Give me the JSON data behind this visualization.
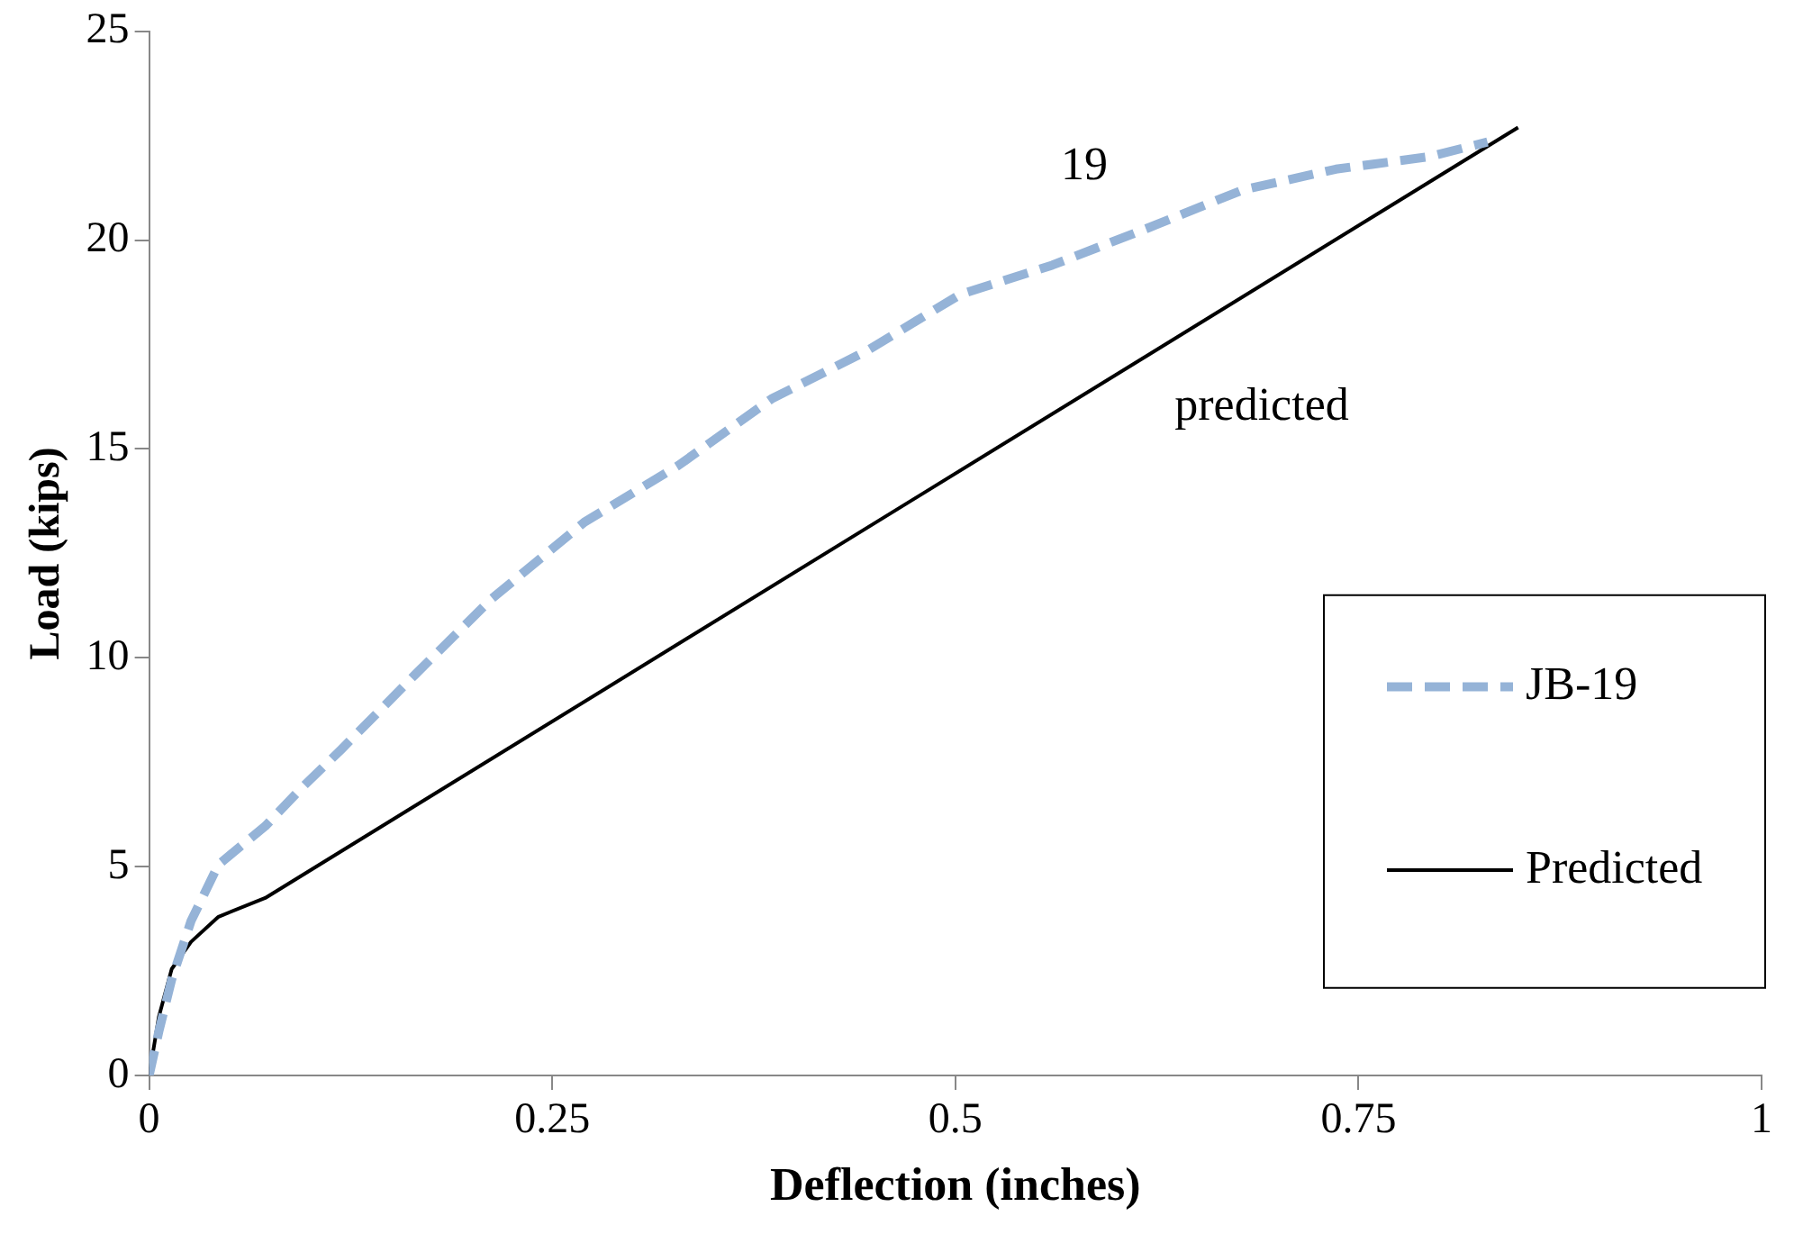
{
  "chart_data": {
    "type": "line",
    "xlabel": "Deflection (inches)",
    "ylabel": "Load (kips)",
    "xlim": [
      0,
      1
    ],
    "xticks": [
      0,
      0.25,
      0.5,
      0.75,
      1
    ],
    "ylim": [
      0,
      25
    ],
    "yticks": [
      0,
      5,
      10,
      15,
      20,
      25
    ],
    "grid": false,
    "legend": "right",
    "marker": "none",
    "series": [
      {
        "name": "JB-19",
        "color": "#95b3d7",
        "line_style": "dashed",
        "x": [
          0,
          0.006,
          0.014,
          0.026,
          0.043,
          0.072,
          0.095,
          0.119,
          0.165,
          0.212,
          0.27,
          0.328,
          0.386,
          0.445,
          0.503,
          0.56,
          0.62,
          0.678,
          0.736,
          0.794,
          0.83
        ],
        "values": [
          0,
          1.05,
          2.3,
          3.7,
          5.05,
          5.97,
          6.9,
          7.8,
          9.6,
          11.4,
          13.25,
          14.6,
          16.2,
          17.35,
          18.7,
          19.4,
          20.3,
          21.2,
          21.7,
          22.0,
          22.35
        ]
      },
      {
        "name": "Predicted",
        "color": "#000000",
        "line_style": "solid",
        "x": [
          0,
          0.006,
          0.014,
          0.026,
          0.043,
          0.072,
          0.849
        ],
        "values": [
          0,
          1.4,
          2.55,
          3.2,
          3.8,
          4.25,
          22.7
        ]
      }
    ],
    "annotations": [
      "19",
      "predicted"
    ]
  }
}
